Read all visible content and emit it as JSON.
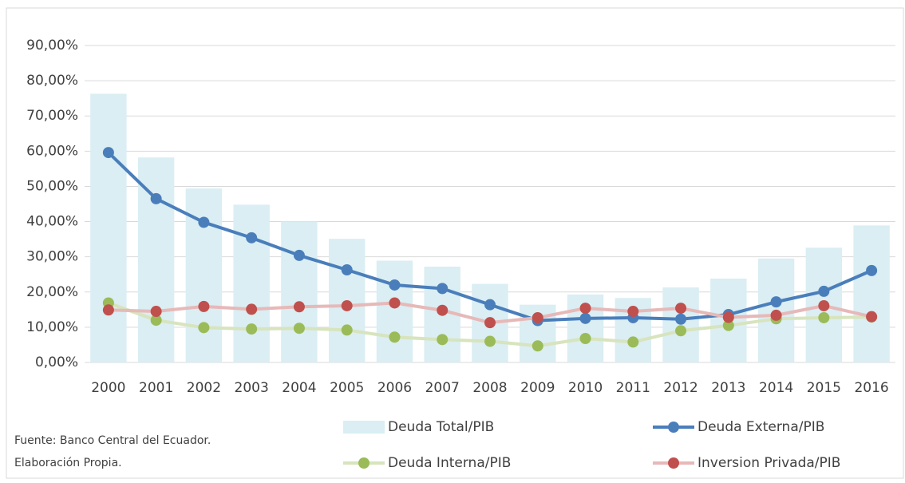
{
  "chart_data": {
    "type": "combo",
    "categories": [
      "2000",
      "2001",
      "2002",
      "2003",
      "2004",
      "2005",
      "2006",
      "2007",
      "2008",
      "2009",
      "2010",
      "2011",
      "2012",
      "2013",
      "2014",
      "2015",
      "2016"
    ],
    "series": [
      {
        "name": "Deuda Total/PIB",
        "type": "bar",
        "color": "#daeef3",
        "values": [
          76.3,
          58.2,
          49.4,
          44.8,
          40.0,
          35.1,
          28.9,
          27.2,
          22.3,
          16.4,
          19.3,
          18.3,
          21.3,
          23.8,
          29.5,
          32.6,
          38.9
        ]
      },
      {
        "name": "Deuda Externa/PIB",
        "type": "line",
        "color": "#4a7ebb",
        "values": [
          59.6,
          46.5,
          39.8,
          35.4,
          30.4,
          26.3,
          22.0,
          21.0,
          16.4,
          11.9,
          12.5,
          12.7,
          12.3,
          13.6,
          17.2,
          20.2,
          26.1
        ]
      },
      {
        "name": "Deuda Interna/PIB",
        "type": "line",
        "color": "#9bbb59",
        "line_color": "#d7e4bd",
        "values": [
          16.9,
          12.0,
          9.9,
          9.5,
          9.7,
          9.2,
          7.2,
          6.5,
          6.0,
          4.7,
          6.8,
          5.8,
          9.0,
          10.5,
          12.4,
          12.7,
          12.9
        ]
      },
      {
        "name": "Inversion Privada/PIB",
        "type": "line",
        "color": "#c0504d",
        "line_color": "#e6b9b8",
        "values": [
          14.9,
          14.5,
          15.9,
          15.1,
          15.8,
          16.1,
          16.9,
          14.8,
          11.3,
          12.7,
          15.4,
          14.5,
          15.4,
          12.8,
          13.4,
          16.1,
          13.0
        ]
      }
    ],
    "ylim": [
      0,
      90
    ],
    "yticks": [
      {
        "value": 0,
        "label": "0,00%"
      },
      {
        "value": 10,
        "label": "10,00%"
      },
      {
        "value": 20,
        "label": "20,00%"
      },
      {
        "value": 30,
        "label": "30,00%"
      },
      {
        "value": 40,
        "label": "40,00%"
      },
      {
        "value": 50,
        "label": "50,00%"
      },
      {
        "value": 60,
        "label": "60,00%"
      },
      {
        "value": 70,
        "label": "70,00%"
      },
      {
        "value": 80,
        "label": "80,00%"
      },
      {
        "value": 90,
        "label": "90,00%"
      }
    ],
    "grid": true,
    "legend": "bottom",
    "notes": [
      "Fuente: Banco Central  del Ecuador.",
      "Elaboración Propia."
    ]
  }
}
